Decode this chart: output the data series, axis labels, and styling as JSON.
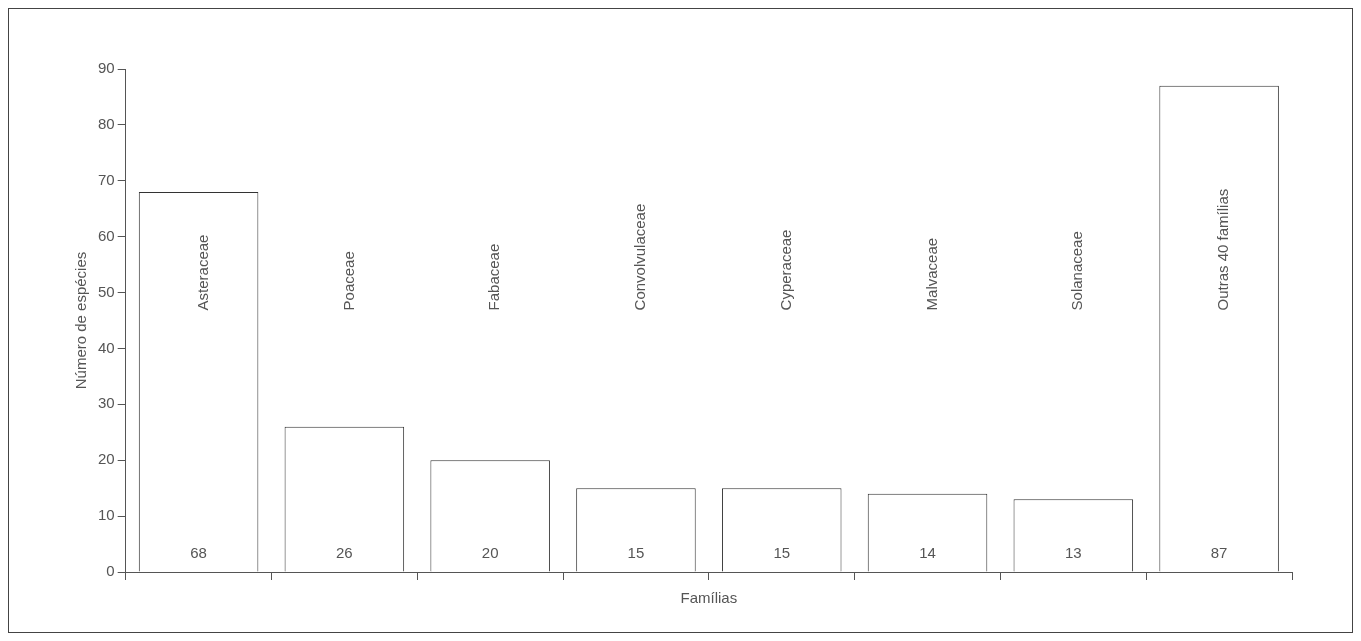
{
  "chart_data": {
    "type": "bar",
    "xlabel": "Famílias",
    "ylabel": "Número de espécies",
    "categories": [
      "Asteraceae",
      "Poaceae",
      "Fabaceae",
      "Convolvulaceae",
      "Cyperaceae",
      "Malvaceae",
      "Solanaceae",
      "Outras 40 famílias"
    ],
    "values": [
      68,
      26,
      20,
      15,
      15,
      14,
      13,
      87
    ],
    "color": "#ffffff",
    "ylim": [
      0,
      90
    ],
    "yticks": [
      0,
      10,
      20,
      30,
      40,
      50,
      60,
      70,
      80,
      90
    ],
    "data_labels": true,
    "legend": false
  }
}
